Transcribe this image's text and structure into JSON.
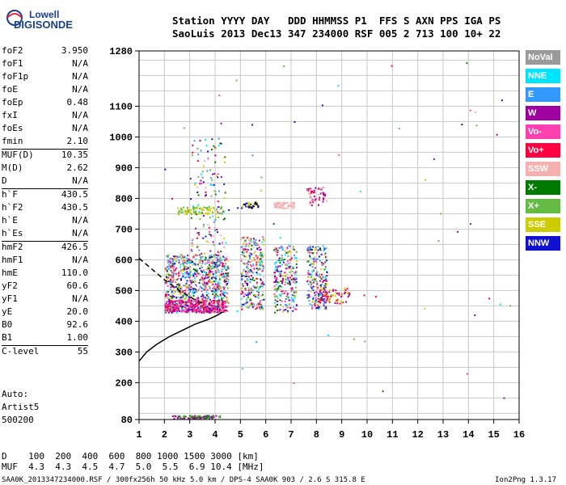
{
  "logo": {
    "line1": "Lowell",
    "line2": "DIGISONDE"
  },
  "header": {
    "line1": "Station YYYY DAY   DDD HHMMSS P1  FFS S AXN PPS IGA PS",
    "line2": "SaoLuis 2013 Dec13 347 234000 RSF 005 2 713 100 10+ 22"
  },
  "params": [
    {
      "name": "foF2",
      "value": "3.950",
      "sep": false
    },
    {
      "name": "foF1",
      "value": "N/A",
      "sep": false
    },
    {
      "name": "foF1p",
      "value": "N/A",
      "sep": false
    },
    {
      "name": "foE",
      "value": "N/A",
      "sep": false
    },
    {
      "name": "foEp",
      "value": "0.48",
      "sep": false
    },
    {
      "name": "fxI",
      "value": "N/A",
      "sep": false
    },
    {
      "name": "foEs",
      "value": "N/A",
      "sep": false
    },
    {
      "name": "fmin",
      "value": "2.10",
      "sep": false
    },
    {
      "name": "MUF(D)",
      "value": "10.35",
      "sep": true
    },
    {
      "name": "M(D)",
      "value": "2.62",
      "sep": false
    },
    {
      "name": "D",
      "value": "N/A",
      "sep": false
    },
    {
      "name": "h`F",
      "value": "430.5",
      "sep": true
    },
    {
      "name": "h`F2",
      "value": "430.5",
      "sep": false
    },
    {
      "name": "h`E",
      "value": "N/A",
      "sep": false
    },
    {
      "name": "h`Es",
      "value": "N/A",
      "sep": false
    },
    {
      "name": "hmF2",
      "value": "426.5",
      "sep": true
    },
    {
      "name": "hmF1",
      "value": "N/A",
      "sep": false
    },
    {
      "name": "hmE",
      "value": "110.0",
      "sep": false
    },
    {
      "name": "yF2",
      "value": "60.6",
      "sep": false
    },
    {
      "name": "yF1",
      "value": "N/A",
      "sep": false
    },
    {
      "name": "yE",
      "value": "20.0",
      "sep": false
    },
    {
      "name": "B0",
      "value": "92.6",
      "sep": false
    },
    {
      "name": "B1",
      "value": "1.00",
      "sep": false
    },
    {
      "name": "C-level",
      "value": "55",
      "sep": true
    }
  ],
  "autoscaling": {
    "line1": "Auto:",
    "line2": "Artist5",
    "line3": "500200"
  },
  "legend": [
    {
      "label": "NoVal",
      "color": "#9a9a9a"
    },
    {
      "label": "NNE",
      "color": "#00e5ff"
    },
    {
      "label": "E",
      "color": "#3399ff"
    },
    {
      "label": "W",
      "color": "#a000a0"
    },
    {
      "label": "Vo-",
      "color": "#ff40b0"
    },
    {
      "label": "Vo+",
      "color": "#ff0040"
    },
    {
      "label": "SSW",
      "color": "#f5b0b0"
    },
    {
      "label": "X-",
      "color": "#007a00"
    },
    {
      "label": "X+",
      "color": "#66bb44"
    },
    {
      "label": "SSE",
      "color": "#cccc00"
    },
    {
      "label": "NNW",
      "color": "#1010d0"
    }
  ],
  "mufTable": {
    "line1": "D    100  200  400  600  800 1000 1500 3000 [km]",
    "line2": "MUF  4.3  4.3  4.5  4.7  5.0  5.5  6.9 10.4 [MHz]"
  },
  "footer": {
    "left": "SAA0K_2013347234000.RSF / 300fx256h 50 kHz 5.0 km / DPS-4 SAA0K 903 / 2.6 S 315.8 E",
    "right": "Ion2Png 1.3.17"
  },
  "chart_data": {
    "type": "scatter",
    "title": "",
    "xlabel": "",
    "ylabel": "",
    "xlim": [
      1,
      16
    ],
    "ylim": [
      80,
      1280
    ],
    "xticks": [
      1,
      2,
      3,
      4,
      5,
      6,
      7,
      8,
      9,
      10,
      11,
      12,
      13,
      14,
      15,
      16
    ],
    "yticks": [
      80,
      200,
      300,
      400,
      500,
      600,
      700,
      800,
      900,
      1000,
      1100,
      1280
    ],
    "grid": true,
    "traces": [
      {
        "name": "",
        "style": "solid",
        "color": "#000000",
        "x": [
          1.0,
          1.3,
          1.7,
          2.2,
          2.7,
          3.2,
          3.7,
          4.1,
          4.3
        ],
        "y": [
          270,
          300,
          325,
          350,
          370,
          390,
          405,
          420,
          430
        ]
      },
      {
        "name": "",
        "style": "dashed",
        "color": "#000000",
        "x": [
          1.0,
          1.5,
          2.0,
          2.5,
          3.0,
          3.3,
          3.6
        ],
        "y": [
          605,
          570,
          535,
          505,
          480,
          465,
          455
        ]
      }
    ]
  }
}
